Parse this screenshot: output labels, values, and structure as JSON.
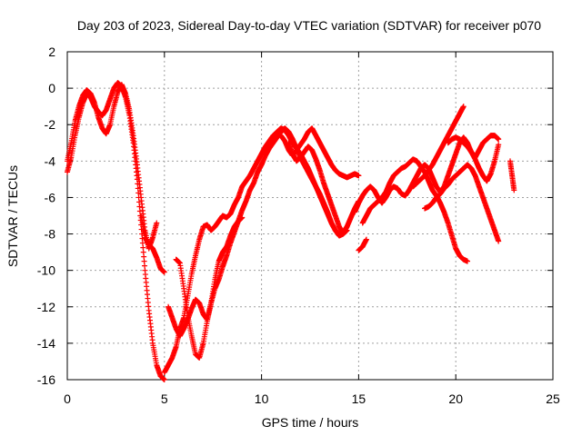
{
  "chart_data": {
    "type": "scatter",
    "title": "Day 203 of 2023, Sidereal Day-to-day VTEC variation (SDTVAR) for receiver p070",
    "xlabel": "GPS time / hours",
    "ylabel": "SDTVAR / TECUs",
    "xlim": [
      0,
      25
    ],
    "ylim": [
      -16,
      2
    ],
    "xticks": [
      0,
      5,
      10,
      15,
      20,
      25
    ],
    "yticks": [
      -16,
      -14,
      -12,
      -10,
      -8,
      -6,
      -4,
      -2,
      0,
      2
    ],
    "grid": true,
    "legend": "none",
    "marker": "plus",
    "color": "#ff0000",
    "series": [
      {
        "x": [
          0.0,
          0.2,
          0.4,
          0.6,
          0.8,
          1.0,
          1.2,
          1.4,
          1.6,
          1.8,
          2.0,
          2.2,
          2.4,
          2.6,
          2.8,
          3.0,
          3.2,
          3.4,
          3.6,
          3.8,
          4.0,
          4.2,
          4.4,
          4.6,
          4.8,
          5.0
        ],
        "y": [
          -4.6,
          -3.8,
          -2.6,
          -1.6,
          -0.8,
          -0.3,
          -0.5,
          -1.0,
          -1.3,
          -1.5,
          -1.2,
          -0.6,
          0.0,
          0.3,
          0.1,
          -0.5,
          -1.5,
          -3.0,
          -5.0,
          -7.5,
          -10.0,
          -12.2,
          -14.0,
          -15.2,
          -15.8,
          -16.0
        ]
      },
      {
        "x": [
          0.0,
          0.2,
          0.4,
          0.6,
          0.8,
          1.0,
          1.2,
          1.4,
          1.6,
          1.8,
          2.0,
          2.2,
          2.4,
          2.6,
          2.8,
          3.0,
          3.2,
          3.4,
          3.6,
          3.8,
          4.0,
          4.2,
          4.4,
          4.6
        ],
        "y": [
          -4.0,
          -3.0,
          -1.8,
          -1.0,
          -0.4,
          -0.1,
          -0.3,
          -0.8,
          -1.6,
          -2.2,
          -2.5,
          -2.0,
          -1.0,
          -0.2,
          0.2,
          -0.3,
          -1.2,
          -2.6,
          -4.2,
          -6.0,
          -7.8,
          -8.8,
          -8.2,
          -7.4
        ]
      },
      {
        "x": [
          3.8,
          4.0,
          4.2,
          4.4,
          4.6,
          4.8,
          5.0
        ],
        "y": [
          -7.0,
          -8.2,
          -8.6,
          -8.8,
          -9.3,
          -9.9,
          -10.1
        ]
      },
      {
        "x": [
          5.0,
          5.2,
          5.4,
          5.6,
          5.8,
          6.0,
          6.2,
          6.4,
          6.6,
          6.8,
          7.0,
          7.2,
          7.4,
          7.6,
          7.8,
          8.0,
          8.2,
          8.4,
          8.6,
          8.8,
          9.0,
          9.2,
          9.4,
          9.6,
          9.8,
          10.0,
          10.2,
          10.4,
          10.6,
          10.8,
          11.0,
          11.2,
          11.4,
          11.6,
          11.8,
          12.0,
          12.2,
          12.4,
          12.6,
          12.8,
          13.0,
          13.2,
          13.4,
          13.6,
          13.8,
          14.0,
          14.2,
          14.4,
          14.6,
          14.8,
          15.0
        ],
        "y": [
          -15.6,
          -15.2,
          -14.8,
          -14.2,
          -13.2,
          -12.6,
          -11.4,
          -10.2,
          -9.2,
          -8.3,
          -7.6,
          -7.5,
          -7.8,
          -7.6,
          -7.3,
          -7.0,
          -7.1,
          -6.9,
          -6.4,
          -6.0,
          -5.4,
          -5.1,
          -4.8,
          -4.4,
          -4.0,
          -3.6,
          -3.2,
          -2.9,
          -2.6,
          -2.4,
          -2.2,
          -2.3,
          -2.6,
          -3.0,
          -3.3,
          -3.6,
          -4.0,
          -4.4,
          -4.9,
          -5.4,
          -5.9,
          -6.4,
          -6.9,
          -7.4,
          -7.8,
          -8.1,
          -8.0,
          -7.6,
          -7.1,
          -6.6,
          -6.2
        ]
      },
      {
        "x": [
          5.6,
          5.8,
          6.0,
          6.2,
          6.4,
          6.6,
          6.8,
          7.0,
          7.2,
          7.4,
          7.6,
          7.8,
          8.0,
          8.2,
          8.4,
          8.6,
          8.8,
          9.0,
          9.2,
          9.4,
          9.6,
          9.8,
          10.0,
          10.2,
          10.4,
          10.6,
          10.8,
          11.0,
          11.2,
          11.4,
          11.6,
          11.8,
          12.0,
          12.2,
          12.4,
          12.6,
          12.8,
          13.0,
          13.2,
          13.4,
          13.6,
          13.8,
          14.0,
          14.2,
          14.4
        ],
        "y": [
          -9.4,
          -9.6,
          -11.0,
          -12.5,
          -13.6,
          -14.6,
          -14.8,
          -14.0,
          -12.8,
          -11.8,
          -11.0,
          -10.5,
          -9.8,
          -9.2,
          -8.5,
          -7.9,
          -7.3,
          -6.7,
          -6.2,
          -5.6,
          -5.2,
          -4.6,
          -4.2,
          -3.7,
          -3.3,
          -3.0,
          -2.7,
          -2.4,
          -2.2,
          -2.4,
          -2.8,
          -3.3,
          -3.8,
          -4.2,
          -4.6,
          -5.0,
          -5.4,
          -5.8,
          -6.3,
          -6.8,
          -7.4,
          -7.8,
          -8.1,
          -7.9,
          -7.6
        ]
      },
      {
        "x": [
          5.2,
          5.4,
          5.6,
          5.8,
          6.0,
          6.2,
          6.4,
          6.6,
          6.8,
          7.0,
          7.2,
          7.4,
          7.6,
          7.8,
          8.0,
          8.2,
          8.4,
          8.6,
          8.8,
          9.0
        ],
        "y": [
          -12.0,
          -12.6,
          -13.2,
          -13.6,
          -13.2,
          -12.7,
          -12.1,
          -11.6,
          -11.8,
          -12.4,
          -12.7,
          -11.8,
          -10.5,
          -9.5,
          -9.0,
          -8.7,
          -8.1,
          -7.6,
          -7.3,
          -7.1
        ]
      },
      {
        "x": [
          11.0,
          11.2,
          11.4,
          11.6,
          11.8,
          12.0,
          12.2,
          12.4,
          12.6,
          12.8,
          13.0,
          13.2,
          13.4,
          13.6,
          13.8,
          14.0,
          14.2,
          14.4,
          14.6,
          14.8,
          15.0
        ],
        "y": [
          -2.6,
          -2.9,
          -3.4,
          -3.7,
          -3.4,
          -3.1,
          -2.8,
          -2.4,
          -2.2,
          -2.6,
          -3.0,
          -3.4,
          -3.8,
          -4.2,
          -4.5,
          -4.7,
          -4.8,
          -4.9,
          -4.8,
          -4.7,
          -4.8
        ]
      },
      {
        "x": [
          11.4,
          11.6,
          11.8,
          12.0,
          12.2,
          12.4,
          12.6,
          12.8,
          13.0,
          13.2,
          13.4,
          13.6,
          13.8,
          14.0,
          14.2,
          14.4
        ],
        "y": [
          -3.0,
          -3.6,
          -4.0,
          -3.8,
          -3.5,
          -3.2,
          -3.4,
          -3.9,
          -4.5,
          -5.2,
          -5.8,
          -6.4,
          -7.0,
          -7.6,
          -8.0,
          -7.8
        ]
      },
      {
        "x": [
          15.0,
          15.2,
          15.4
        ],
        "y": [
          -8.9,
          -8.7,
          -8.3
        ]
      },
      {
        "x": [
          14.8,
          15.0,
          15.2,
          15.4,
          15.6,
          15.8,
          16.0,
          16.2,
          16.4,
          16.6,
          16.8,
          17.0,
          17.2,
          17.4,
          17.6,
          17.8,
          18.0,
          18.2,
          18.4,
          18.6,
          18.8,
          19.0,
          19.2,
          19.4,
          19.6,
          19.8,
          20.0,
          20.2,
          20.4,
          20.6,
          20.8,
          21.0,
          21.2,
          21.4,
          21.6,
          21.8,
          22.0,
          22.2
        ],
        "y": [
          -6.8,
          -6.3,
          -5.9,
          -5.6,
          -5.4,
          -5.6,
          -6.0,
          -6.3,
          -6.0,
          -5.6,
          -5.4,
          -5.5,
          -5.8,
          -5.9,
          -5.6,
          -5.2,
          -4.8,
          -4.4,
          -4.2,
          -4.4,
          -4.9,
          -5.4,
          -5.7,
          -5.4,
          -4.8,
          -4.2,
          -3.6,
          -3.0,
          -2.7,
          -3.0,
          -3.5,
          -3.9,
          -4.4,
          -4.8,
          -5.1,
          -4.7,
          -4.0,
          -3.1
        ]
      },
      {
        "x": [
          15.2,
          15.4,
          15.6,
          15.8,
          16.0,
          16.2,
          16.4,
          16.6,
          16.8,
          17.0,
          17.2,
          17.4,
          17.6,
          17.8,
          18.0,
          18.2,
          18.4,
          18.6,
          18.8,
          19.0,
          19.2,
          19.4,
          19.6,
          19.8,
          20.0,
          20.2,
          20.4,
          20.6
        ],
        "y": [
          -7.4,
          -7.0,
          -6.6,
          -6.4,
          -6.2,
          -6.0,
          -5.7,
          -5.2,
          -4.8,
          -4.6,
          -4.4,
          -4.3,
          -4.1,
          -3.9,
          -4.0,
          -4.3,
          -4.6,
          -5.1,
          -5.6,
          -5.9,
          -6.3,
          -6.8,
          -7.4,
          -8.1,
          -8.8,
          -9.2,
          -9.4,
          -9.5
        ]
      },
      {
        "x": [
          17.8,
          18.0,
          18.2,
          18.4,
          18.6,
          18.8,
          19.0,
          19.2,
          19.4,
          19.6,
          19.8,
          20.0,
          20.2,
          20.4
        ],
        "y": [
          -5.4,
          -5.2,
          -5.0,
          -4.8,
          -4.5,
          -4.2,
          -3.8,
          -3.4,
          -3.0,
          -2.6,
          -2.2,
          -1.8,
          -1.4,
          -1.0
        ]
      },
      {
        "x": [
          18.4,
          18.6,
          18.8,
          19.0,
          19.2,
          19.4,
          19.6,
          19.8,
          20.0,
          20.2,
          20.4,
          20.6,
          20.8,
          21.0,
          21.2,
          21.4,
          21.6,
          21.8,
          22.0,
          22.2
        ],
        "y": [
          -6.6,
          -6.5,
          -6.3,
          -6.0,
          -5.8,
          -5.5,
          -5.3,
          -5.0,
          -4.8,
          -4.6,
          -4.4,
          -4.2,
          -4.4,
          -4.8,
          -5.4,
          -6.0,
          -6.6,
          -7.2,
          -7.8,
          -8.4
        ]
      },
      {
        "x": [
          19.6,
          19.8,
          20.0,
          20.2,
          20.4,
          20.6,
          20.8,
          21.0,
          21.2,
          21.4,
          21.6,
          21.8,
          22.0,
          22.2
        ],
        "y": [
          -3.0,
          -2.8,
          -2.7,
          -2.8,
          -3.0,
          -3.2,
          -3.5,
          -3.8,
          -3.4,
          -3.0,
          -2.8,
          -2.6,
          -2.6,
          -2.8
        ]
      },
      {
        "x": [
          22.8,
          22.9,
          23.0
        ],
        "y": [
          -4.0,
          -4.8,
          -5.6
        ]
      }
    ]
  }
}
